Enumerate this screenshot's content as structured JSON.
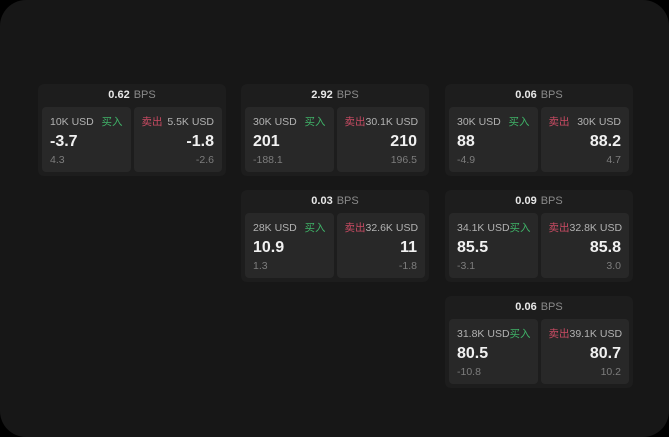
{
  "labels": {
    "buy": "买入",
    "sell": "卖出",
    "bps_unit": "BPS"
  },
  "colors": {
    "buy_accent": "#3fb368",
    "sell_accent": "#c94b63",
    "frame_bg": "#171717",
    "card_bg": "#1d1d1d",
    "tile_bg": "#282828"
  },
  "cards": [
    {
      "bps": "0.62",
      "buy": {
        "amount": "10K USD",
        "value": "-3.7",
        "sub": "4.3"
      },
      "sell": {
        "amount": "5.5K USD",
        "value": "-1.8",
        "sub": "-2.6"
      }
    },
    {
      "bps": "2.92",
      "buy": {
        "amount": "30K USD",
        "value": "201",
        "sub": "-188.1"
      },
      "sell": {
        "amount": "30.1K USD",
        "value": "210",
        "sub": "196.5"
      }
    },
    {
      "bps": "0.06",
      "buy": {
        "amount": "30K USD",
        "value": "88",
        "sub": "-4.9"
      },
      "sell": {
        "amount": "30K USD",
        "value": "88.2",
        "sub": "4.7"
      }
    },
    {
      "bps": "0.03",
      "buy": {
        "amount": "28K USD",
        "value": "10.9",
        "sub": "1.3"
      },
      "sell": {
        "amount": "32.6K USD",
        "value": "11",
        "sub": "-1.8"
      }
    },
    {
      "bps": "0.09",
      "buy": {
        "amount": "34.1K USD",
        "value": "85.5",
        "sub": "-3.1"
      },
      "sell": {
        "amount": "32.8K USD",
        "value": "85.8",
        "sub": "3.0"
      }
    },
    {
      "bps": "0.06",
      "buy": {
        "amount": "31.8K USD",
        "value": "80.5",
        "sub": "-10.8"
      },
      "sell": {
        "amount": "39.1K USD",
        "value": "80.7",
        "sub": "10.2"
      }
    }
  ]
}
